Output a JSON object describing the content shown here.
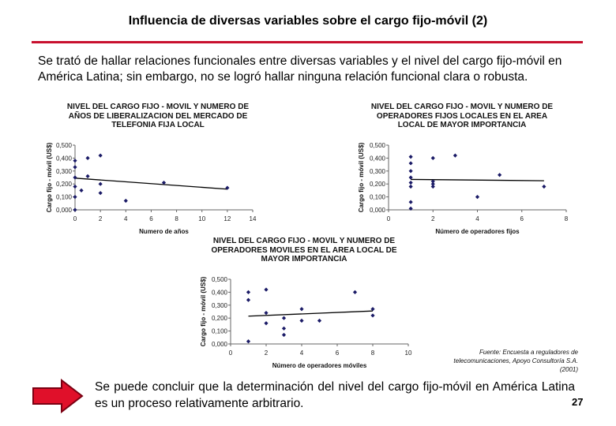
{
  "slide": {
    "title": "Influencia de diversas variables sobre el cargo fijo-móvil (2)",
    "intro": "Se trató de hallar relaciones funcionales entre diversas variables y el nivel del cargo fijo-móvil en América Latina; sin embargo, no se logró hallar ninguna relación funcional clara o robusta.",
    "conclusion": "Se puede concluir que la determinación del nivel del cargo fijo-móvil en América Latina es un proceso relativamente arbitrario.",
    "page_number": "27",
    "source_lines": [
      "Fuente: Encuesta a reguladores de",
      "telecomunicaciones, Apoyo Consultoría S.A.",
      "(2001)"
    ],
    "accent_color": "#c8102e",
    "marker_color": "#1a1a66",
    "arrow_icon": "right-arrow-icon"
  },
  "chart_data": [
    {
      "type": "scatter",
      "title_lines": [
        "NIVEL DEL CARGO FIJO - MOVIL Y NUMERO DE",
        "AÑOS DE LIBERALIZACION DEL MERCADO DE",
        "TELEFONIA FIJA LOCAL"
      ],
      "xlabel": "Numero de años",
      "ylabel": "Cargo fijo - móvil (US$)",
      "xlim": [
        0,
        14
      ],
      "ylim": [
        0,
        0.5
      ],
      "xticks": [
        "0",
        "2",
        "4",
        "6",
        "8",
        "10",
        "12",
        "14"
      ],
      "yticks": [
        "0,000",
        "0,100",
        "0,200",
        "0,300",
        "0,400",
        "0,500"
      ],
      "x": [
        0,
        0,
        0,
        0,
        0,
        0,
        0.5,
        1,
        1,
        2,
        2,
        2,
        4,
        7,
        12
      ],
      "y": [
        0.38,
        0.33,
        0.25,
        0.18,
        0.1,
        0.0,
        0.15,
        0.4,
        0.26,
        0.42,
        0.2,
        0.13,
        0.07,
        0.21,
        0.17
      ],
      "trend": [
        [
          0,
          0.245
        ],
        [
          12,
          0.16
        ]
      ]
    },
    {
      "type": "scatter",
      "title_lines": [
        "NIVEL DEL CARGO FIJO - MOVIL Y NUMERO DE",
        "OPERADORES FIJOS LOCALES EN EL AREA",
        "LOCAL DE MAYOR IMPORTANCIA"
      ],
      "xlabel": "Número de operadores fijos",
      "ylabel": "Cargo fijo - móvil (US$)",
      "xlim": [
        0,
        8
      ],
      "ylim": [
        0,
        0.5
      ],
      "xticks": [
        "0",
        "2",
        "4",
        "6",
        "8"
      ],
      "yticks": [
        "0,000",
        "0,100",
        "0,200",
        "0,300",
        "0,400",
        "0,500"
      ],
      "x": [
        1,
        1,
        1,
        1,
        1,
        1,
        1,
        1,
        2,
        2,
        2,
        2,
        3,
        4,
        5,
        7
      ],
      "y": [
        0.41,
        0.36,
        0.3,
        0.25,
        0.21,
        0.18,
        0.06,
        0.01,
        0.4,
        0.22,
        0.2,
        0.18,
        0.42,
        0.1,
        0.27,
        0.18
      ],
      "trend": [
        [
          1,
          0.235
        ],
        [
          7,
          0.225
        ]
      ]
    },
    {
      "type": "scatter",
      "title_lines": [
        "NIVEL DEL CARGO FIJO - MOVIL Y NUMERO DE",
        "OPERADORES MOVILES EN EL AREA LOCAL DE",
        "MAYOR IMPORTANCIA"
      ],
      "xlabel": "Número de operadores móviles",
      "ylabel": "Cargo fijo - móvil (US$)",
      "xlim": [
        0,
        10
      ],
      "ylim": [
        0,
        0.5
      ],
      "xticks": [
        "0",
        "2",
        "4",
        "6",
        "8",
        "10"
      ],
      "yticks": [
        "0,000",
        "0,100",
        "0,200",
        "0,300",
        "0,400",
        "0,500"
      ],
      "x": [
        1,
        1,
        1,
        2,
        2,
        2,
        3,
        3,
        3,
        4,
        4,
        5,
        7,
        8,
        8
      ],
      "y": [
        0.4,
        0.34,
        0.02,
        0.42,
        0.24,
        0.16,
        0.2,
        0.12,
        0.07,
        0.27,
        0.18,
        0.18,
        0.4,
        0.27,
        0.22
      ],
      "trend": [
        [
          1,
          0.215
        ],
        [
          8,
          0.255
        ]
      ]
    }
  ]
}
